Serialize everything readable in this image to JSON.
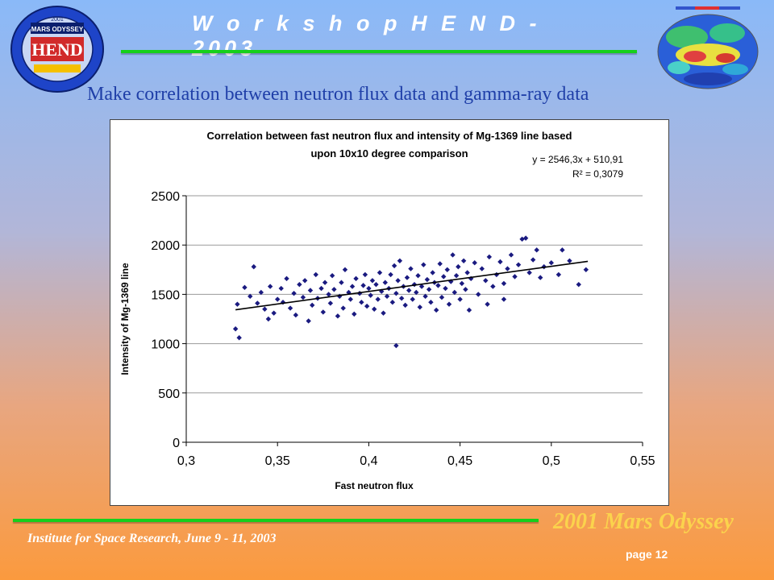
{
  "header": {
    "title": "W o r k s h o p   H E N D - 2003",
    "logo_text": "HEND",
    "logo_sub": "MARS ODYSSEY",
    "logo_year": "2001"
  },
  "subtitle": "Make correlation between neutron flux data and gamma-ray data",
  "footer": {
    "mission": "2001 Mars Odyssey",
    "institute": "Institute for Space Research, June 9 - 11, 2003",
    "page": "page 12"
  },
  "colors": {
    "accent_green": "#16d01b",
    "marker": "#1a1a80",
    "subtitle_blue": "#1f3fa8",
    "mission_gold": "#fbd34c"
  },
  "chart_data": {
    "type": "scatter",
    "title_line1": "Correlation between fast neutron flux and intensity of Mg-1369 line based",
    "title_line2": "upon 10x10 degree comparison",
    "equation": "y = 2546,3x + 510,91",
    "r_squared": "R² = 0,3079",
    "xlabel": "Fast neutron flux",
    "ylabel": "Intensity of Mg-1369 line",
    "xlim": [
      0.3,
      0.55
    ],
    "ylim": [
      0,
      2500
    ],
    "x_ticks": [
      "0,3",
      "0,35",
      "0,4",
      "0,45",
      "0,5",
      "0,55"
    ],
    "x_tick_values": [
      0.3,
      0.35,
      0.4,
      0.45,
      0.5,
      0.55
    ],
    "y_ticks": [
      "0",
      "500",
      "1000",
      "1500",
      "2000",
      "2500"
    ],
    "y_tick_values": [
      0,
      500,
      1000,
      1500,
      2000,
      2500
    ],
    "grid": "horizontal",
    "trendline": {
      "slope": 2546.3,
      "intercept": 510.91,
      "x_range": [
        0.327,
        0.52
      ]
    },
    "points": [
      [
        0.327,
        1150
      ],
      [
        0.329,
        1060
      ],
      [
        0.328,
        1400
      ],
      [
        0.332,
        1570
      ],
      [
        0.335,
        1480
      ],
      [
        0.337,
        1780
      ],
      [
        0.339,
        1410
      ],
      [
        0.341,
        1520
      ],
      [
        0.343,
        1350
      ],
      [
        0.345,
        1250
      ],
      [
        0.346,
        1580
      ],
      [
        0.348,
        1310
      ],
      [
        0.35,
        1450
      ],
      [
        0.352,
        1560
      ],
      [
        0.353,
        1420
      ],
      [
        0.355,
        1660
      ],
      [
        0.357,
        1360
      ],
      [
        0.359,
        1510
      ],
      [
        0.36,
        1290
      ],
      [
        0.362,
        1600
      ],
      [
        0.364,
        1470
      ],
      [
        0.365,
        1640
      ],
      [
        0.367,
        1230
      ],
      [
        0.368,
        1540
      ],
      [
        0.369,
        1390
      ],
      [
        0.371,
        1700
      ],
      [
        0.372,
        1460
      ],
      [
        0.374,
        1560
      ],
      [
        0.375,
        1320
      ],
      [
        0.376,
        1620
      ],
      [
        0.378,
        1500
      ],
      [
        0.379,
        1410
      ],
      [
        0.38,
        1690
      ],
      [
        0.381,
        1550
      ],
      [
        0.383,
        1280
      ],
      [
        0.384,
        1480
      ],
      [
        0.385,
        1620
      ],
      [
        0.386,
        1360
      ],
      [
        0.387,
        1750
      ],
      [
        0.389,
        1520
      ],
      [
        0.39,
        1450
      ],
      [
        0.391,
        1580
      ],
      [
        0.392,
        1300
      ],
      [
        0.393,
        1660
      ],
      [
        0.395,
        1510
      ],
      [
        0.396,
        1420
      ],
      [
        0.397,
        1590
      ],
      [
        0.398,
        1700
      ],
      [
        0.399,
        1380
      ],
      [
        0.4,
        1560
      ],
      [
        0.401,
        1490
      ],
      [
        0.402,
        1640
      ],
      [
        0.403,
        1350
      ],
      [
        0.404,
        1600
      ],
      [
        0.405,
        1450
      ],
      [
        0.406,
        1720
      ],
      [
        0.407,
        1530
      ],
      [
        0.408,
        1310
      ],
      [
        0.409,
        1620
      ],
      [
        0.41,
        1480
      ],
      [
        0.411,
        1560
      ],
      [
        0.412,
        1700
      ],
      [
        0.413,
        1420
      ],
      [
        0.414,
        1790
      ],
      [
        0.415,
        980
      ],
      [
        0.415,
        1510
      ],
      [
        0.416,
        1640
      ],
      [
        0.417,
        1840
      ],
      [
        0.418,
        1460
      ],
      [
        0.419,
        1580
      ],
      [
        0.42,
        1390
      ],
      [
        0.421,
        1670
      ],
      [
        0.422,
        1540
      ],
      [
        0.423,
        1760
      ],
      [
        0.424,
        1450
      ],
      [
        0.425,
        1600
      ],
      [
        0.426,
        1520
      ],
      [
        0.427,
        1690
      ],
      [
        0.428,
        1370
      ],
      [
        0.429,
        1580
      ],
      [
        0.43,
        1800
      ],
      [
        0.431,
        1480
      ],
      [
        0.432,
        1650
      ],
      [
        0.433,
        1550
      ],
      [
        0.434,
        1420
      ],
      [
        0.435,
        1720
      ],
      [
        0.436,
        1620
      ],
      [
        0.437,
        1340
      ],
      [
        0.438,
        1590
      ],
      [
        0.439,
        1810
      ],
      [
        0.44,
        1470
      ],
      [
        0.441,
        1680
      ],
      [
        0.442,
        1560
      ],
      [
        0.443,
        1750
      ],
      [
        0.444,
        1400
      ],
      [
        0.445,
        1630
      ],
      [
        0.446,
        1900
      ],
      [
        0.447,
        1520
      ],
      [
        0.448,
        1690
      ],
      [
        0.449,
        1780
      ],
      [
        0.45,
        1450
      ],
      [
        0.451,
        1610
      ],
      [
        0.452,
        1840
      ],
      [
        0.453,
        1550
      ],
      [
        0.454,
        1720
      ],
      [
        0.456,
        1660
      ],
      [
        0.458,
        1820
      ],
      [
        0.46,
        1500
      ],
      [
        0.462,
        1760
      ],
      [
        0.464,
        1640
      ],
      [
        0.466,
        1880
      ],
      [
        0.468,
        1580
      ],
      [
        0.47,
        1700
      ],
      [
        0.472,
        1830
      ],
      [
        0.474,
        1610
      ],
      [
        0.476,
        1760
      ],
      [
        0.478,
        1900
      ],
      [
        0.48,
        1680
      ],
      [
        0.482,
        1800
      ],
      [
        0.484,
        2060
      ],
      [
        0.486,
        2070
      ],
      [
        0.488,
        1720
      ],
      [
        0.49,
        1850
      ],
      [
        0.492,
        1950
      ],
      [
        0.494,
        1670
      ],
      [
        0.496,
        1780
      ],
      [
        0.5,
        1820
      ],
      [
        0.504,
        1700
      ],
      [
        0.506,
        1950
      ],
      [
        0.51,
        1840
      ],
      [
        0.515,
        1600
      ],
      [
        0.519,
        1750
      ],
      [
        0.474,
        1450
      ],
      [
        0.465,
        1400
      ],
      [
        0.455,
        1340
      ]
    ]
  }
}
